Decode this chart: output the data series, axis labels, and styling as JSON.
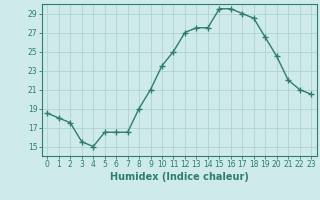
{
  "x": [
    0,
    1,
    2,
    3,
    4,
    5,
    6,
    7,
    8,
    9,
    10,
    11,
    12,
    13,
    14,
    15,
    16,
    17,
    18,
    19,
    20,
    21,
    22,
    23
  ],
  "y": [
    18.5,
    18.0,
    17.5,
    15.5,
    15.0,
    16.5,
    16.5,
    16.5,
    19.0,
    21.0,
    23.5,
    25.0,
    27.0,
    27.5,
    27.5,
    29.5,
    29.5,
    29.0,
    28.5,
    26.5,
    24.5,
    22.0,
    21.0,
    20.5
  ],
  "line_color": "#2e7d6e",
  "marker": "D",
  "marker_size": 2.0,
  "bg_color": "#ceeaea",
  "grid_color": "#b0d4d0",
  "xlabel": "Humidex (Indice chaleur)",
  "ylim": [
    14,
    30
  ],
  "yticks": [
    15,
    17,
    19,
    21,
    23,
    25,
    27,
    29
  ],
  "xticks": [
    0,
    1,
    2,
    3,
    4,
    5,
    6,
    7,
    8,
    9,
    10,
    11,
    12,
    13,
    14,
    15,
    16,
    17,
    18,
    19,
    20,
    21,
    22,
    23
  ],
  "tick_label_size": 5.5,
  "xlabel_size": 7.0
}
